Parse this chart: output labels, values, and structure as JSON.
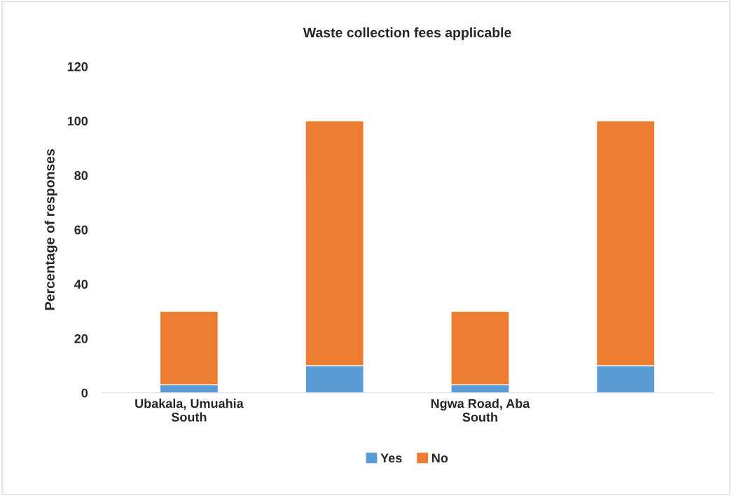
{
  "chart_data": {
    "type": "bar",
    "title": "Waste collection fees applicable",
    "ylabel": "Percentage of responses",
    "categories": [
      "Ubakala, Umuahia South",
      null,
      "Ngwa Road, Aba South",
      null
    ],
    "stacked": true,
    "series": [
      {
        "name": "Yes",
        "color": "#5b9bd5",
        "values": [
          3,
          10,
          3,
          10
        ]
      },
      {
        "name": "No",
        "color": "#ed7d31",
        "values": [
          27,
          90,
          27,
          90
        ]
      }
    ],
    "ylim": [
      0,
      120
    ],
    "yticks": [
      0,
      20,
      40,
      60,
      80,
      100,
      120
    ],
    "grid": false,
    "legend": "bottom"
  }
}
